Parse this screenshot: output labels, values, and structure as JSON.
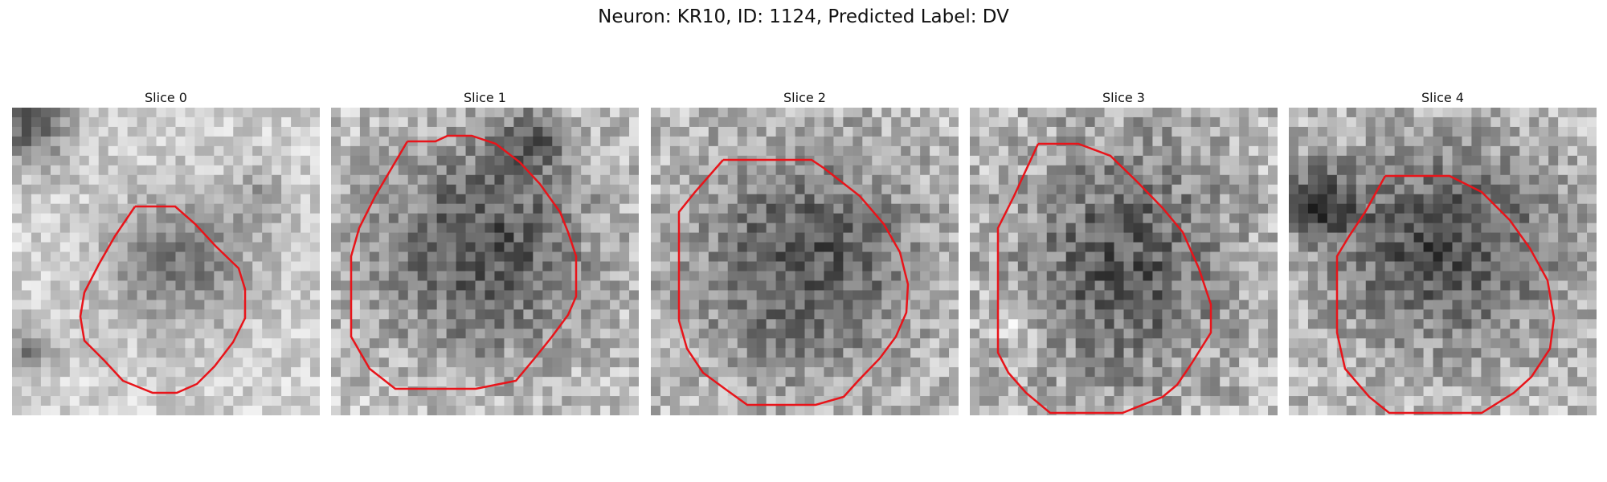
{
  "figure": {
    "title": "Neuron: KR10, ID: 1124, Predicted Label: DV"
  },
  "panels": [
    {
      "title": "Slice 0"
    },
    {
      "title": "Slice 1"
    },
    {
      "title": "Slice 2"
    },
    {
      "title": "Slice 3"
    },
    {
      "title": "Slice 4"
    }
  ],
  "contour_color": "#e8141a"
}
